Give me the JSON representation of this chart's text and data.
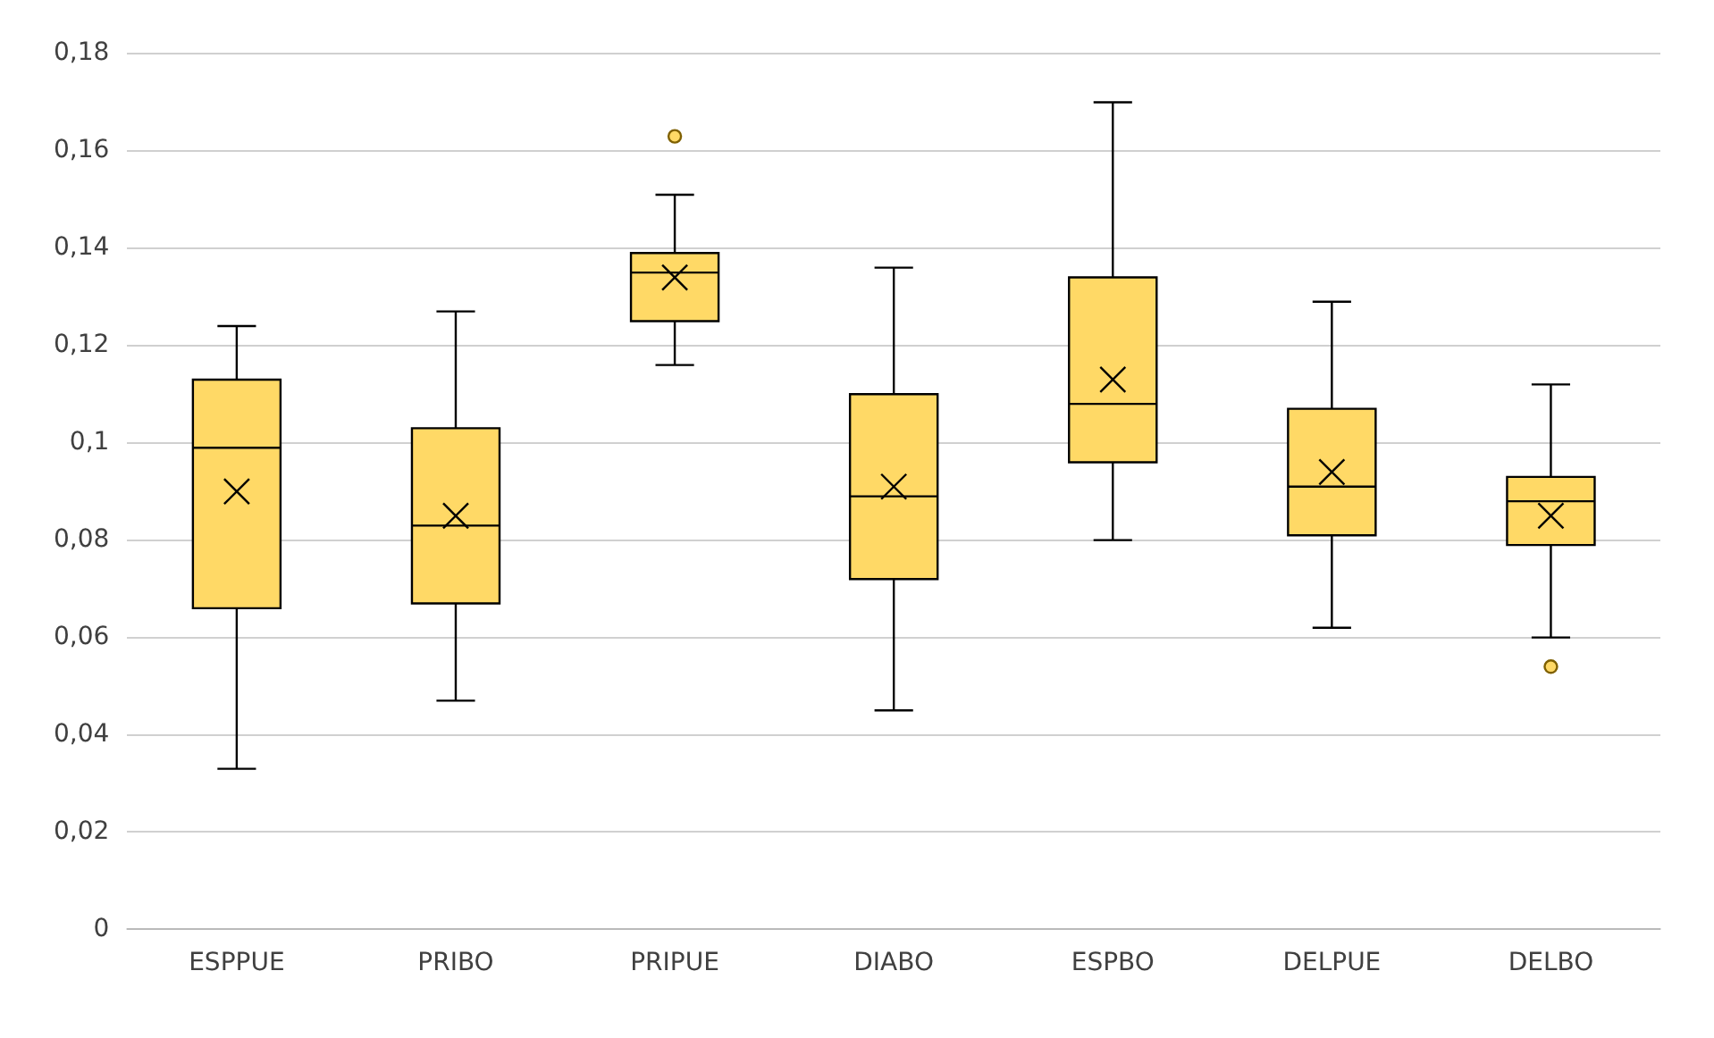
{
  "chart_data": {
    "type": "box",
    "categories": [
      "ESPPUE",
      "PRIBO",
      "PRIPUE",
      "DIABO",
      "ESPBO",
      "DELPUE",
      "DELBO"
    ],
    "color": "#ffd966",
    "boxes": [
      {
        "low": 0.033,
        "q1": 0.066,
        "median": 0.099,
        "q3": 0.113,
        "high": 0.124,
        "mean": 0.09
      },
      {
        "low": 0.047,
        "q1": 0.067,
        "median": 0.083,
        "q3": 0.103,
        "high": 0.127,
        "mean": 0.085
      },
      {
        "low": 0.116,
        "q1": 0.125,
        "median": 0.135,
        "q3": 0.139,
        "high": 0.151,
        "mean": 0.134,
        "outliers": [
          0.163
        ]
      },
      {
        "low": 0.045,
        "q1": 0.072,
        "median": 0.089,
        "q3": 0.11,
        "high": 0.136,
        "mean": 0.091
      },
      {
        "low": 0.08,
        "q1": 0.096,
        "median": 0.108,
        "q3": 0.134,
        "high": 0.17,
        "mean": 0.113
      },
      {
        "low": 0.062,
        "q1": 0.081,
        "median": 0.091,
        "q3": 0.107,
        "high": 0.129,
        "mean": 0.094
      },
      {
        "low": 0.06,
        "q1": 0.079,
        "median": 0.088,
        "q3": 0.093,
        "high": 0.112,
        "mean": 0.085,
        "outliers": [
          0.054
        ]
      }
    ],
    "ylim": [
      0,
      0.18
    ],
    "yticks": [
      {
        "value": 0,
        "label": "0"
      },
      {
        "value": 0.02,
        "label": "0,02"
      },
      {
        "value": 0.04,
        "label": "0,04"
      },
      {
        "value": 0.06,
        "label": "0,06"
      },
      {
        "value": 0.08,
        "label": "0,08"
      },
      {
        "value": 0.1,
        "label": "0,1"
      },
      {
        "value": 0.12,
        "label": "0,12"
      },
      {
        "value": 0.14,
        "label": "0,14"
      },
      {
        "value": 0.16,
        "label": "0,16"
      },
      {
        "value": 0.18,
        "label": "0,18"
      }
    ],
    "grid": "y"
  }
}
